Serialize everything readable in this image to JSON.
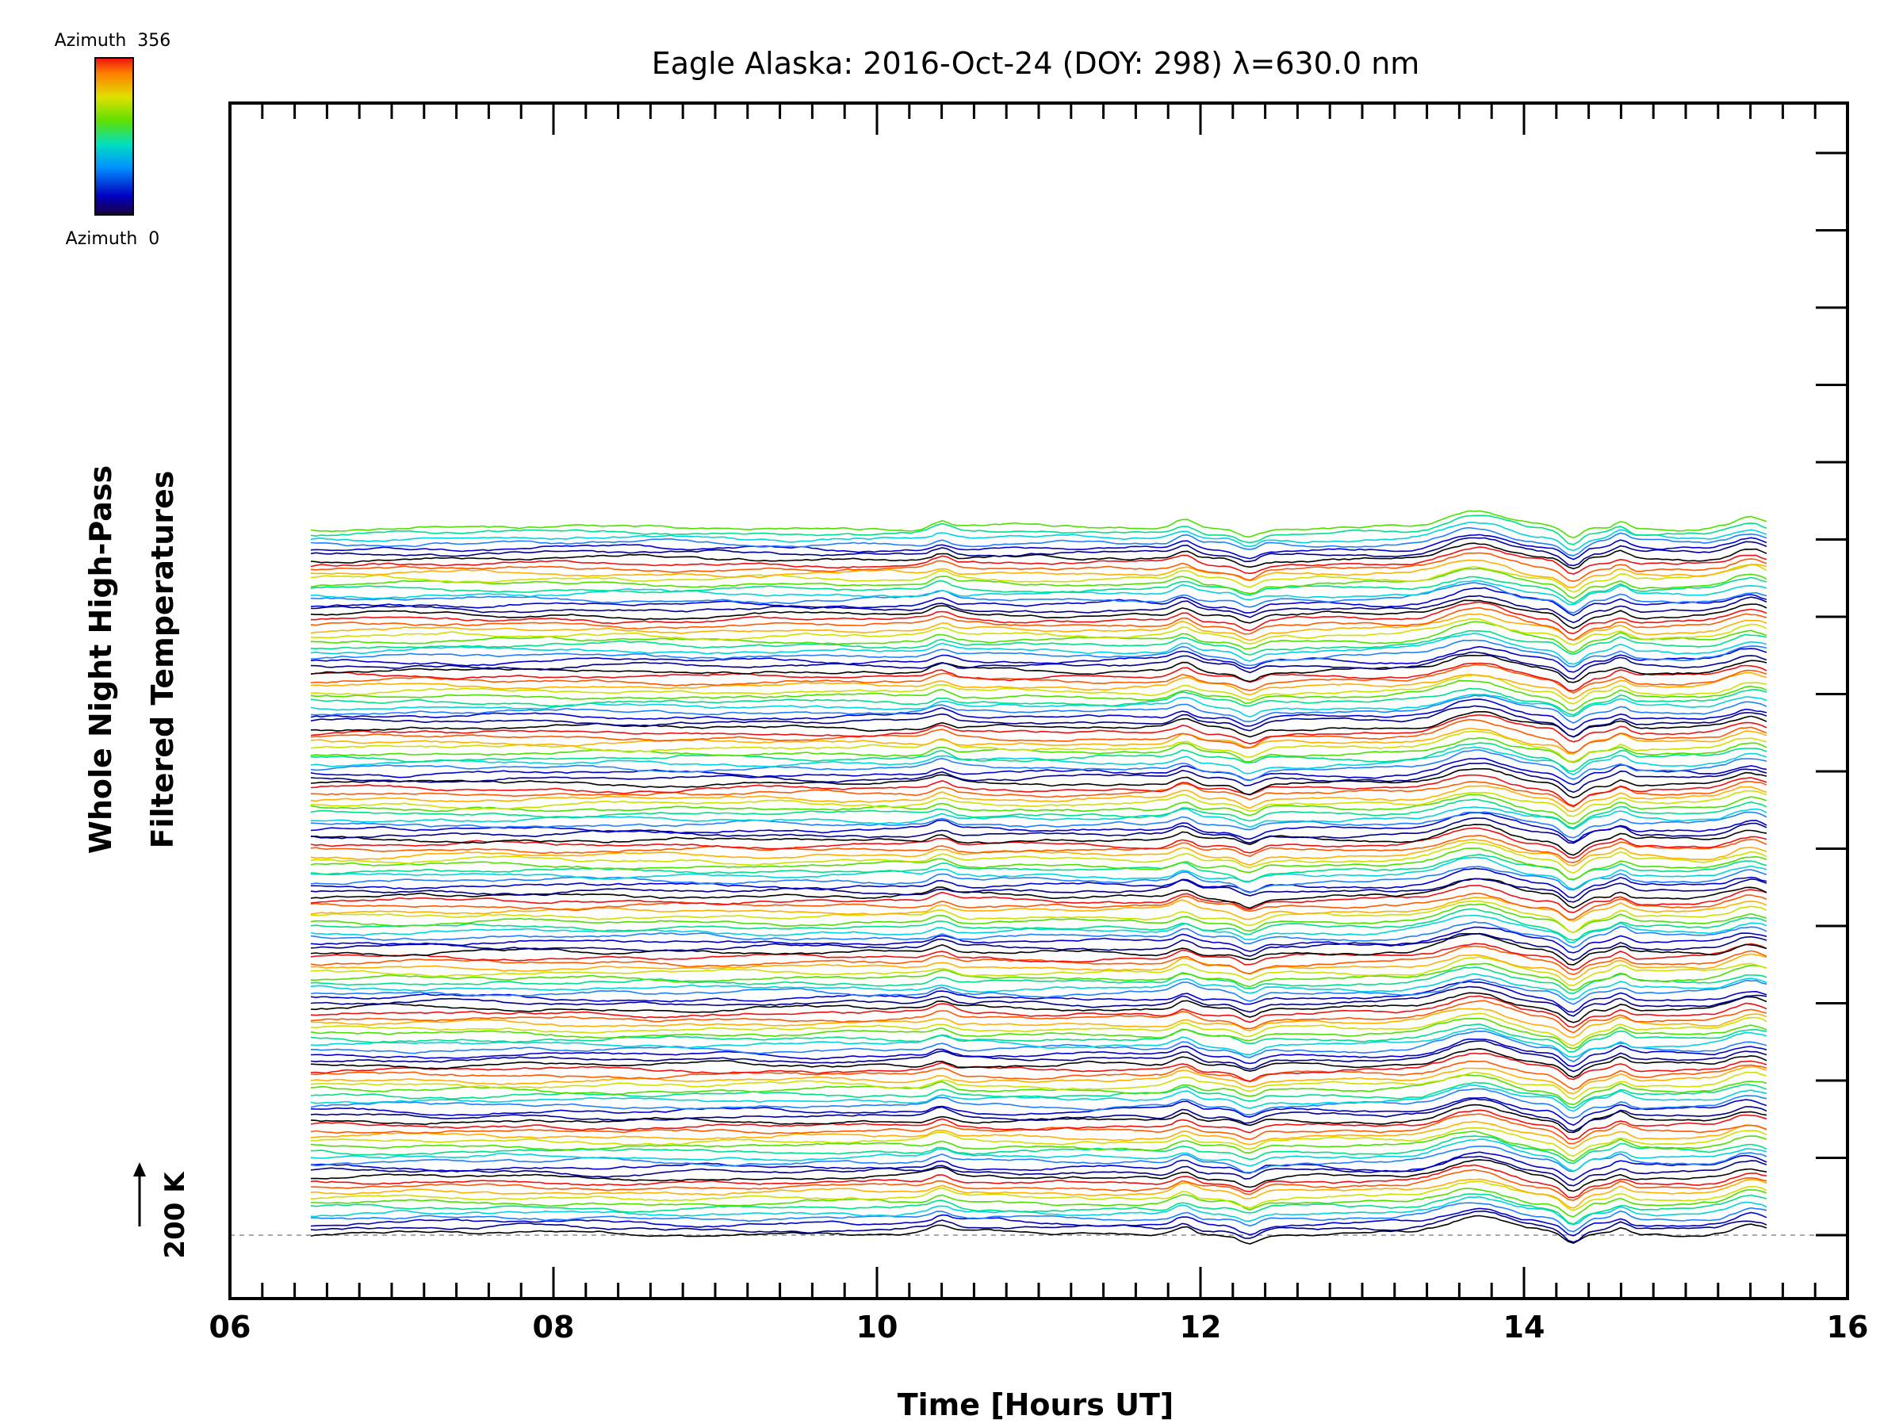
{
  "chart_data": {
    "type": "line",
    "title": "Eagle Alaska: 2016-Oct-24 (DOY: 298) λ=630.0 nm",
    "xlabel": "Time [Hours UT]",
    "ylabel_line1": "Whole Night High-Pass",
    "ylabel_line2": "Filtered Temperatures",
    "xlim": [
      6,
      16
    ],
    "x_ticks": [
      "06",
      "08",
      "10",
      "12",
      "14",
      "16"
    ],
    "x_data_range": [
      6.5,
      15.5
    ],
    "grid": false,
    "stacked_offsets": true,
    "trace_count": 139,
    "baseline_label": "200 K",
    "colorbar": {
      "colormap": "rainbow",
      "top_label": "Azimuth  356",
      "bottom_label": "Azimuth  0"
    },
    "colors": [
      "#000000",
      "#00008a",
      "#0000d0",
      "#2080ff",
      "#00d4e0",
      "#00e08a",
      "#4ee000",
      "#d0e000",
      "#ffb000",
      "#ff5a00",
      "#ee1010"
    ],
    "features": [
      {
        "x": 10.4,
        "amp": 0.5,
        "w": 0.08
      },
      {
        "x": 11.9,
        "amp": 0.6,
        "w": 0.08
      },
      {
        "x": 12.3,
        "amp": -0.6,
        "w": 0.08
      },
      {
        "x": 13.7,
        "amp": 1.2,
        "w": 0.25
      },
      {
        "x": 14.3,
        "amp": -1.0,
        "w": 0.08
      },
      {
        "x": 14.6,
        "amp": 0.5,
        "w": 0.06
      },
      {
        "x": 15.4,
        "amp": 0.8,
        "w": 0.15
      }
    ]
  }
}
